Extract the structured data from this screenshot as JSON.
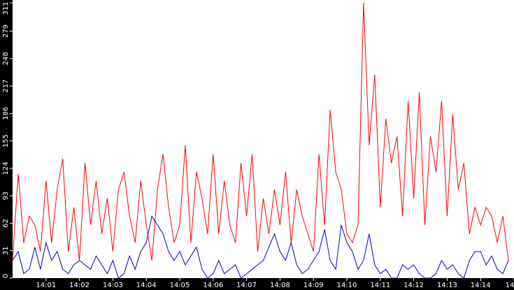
{
  "chart_data": {
    "type": "line",
    "x": [
      0,
      10,
      20,
      30,
      40,
      50,
      60,
      70,
      80,
      90,
      100,
      110,
      120,
      130,
      140,
      150,
      160,
      170,
      180,
      190,
      200,
      210,
      220,
      230,
      240,
      250,
      260,
      270,
      280,
      290,
      300,
      310,
      320,
      330,
      340,
      350,
      360,
      370,
      380,
      390,
      400,
      410,
      420,
      430,
      440,
      450,
      460,
      470,
      480,
      490,
      500,
      510,
      520,
      530,
      540,
      550,
      560,
      570,
      580,
      590,
      600,
      610,
      620,
      630,
      640,
      650,
      660,
      670,
      680,
      690,
      700,
      710,
      720,
      730,
      740,
      750,
      760,
      770,
      780,
      790,
      800,
      810,
      820,
      830,
      840,
      850,
      860,
      870,
      880,
      890
    ],
    "xlim": [
      0,
      900
    ],
    "xticks": [
      {
        "value": 60,
        "label": "14:01"
      },
      {
        "value": 120,
        "label": "14:02"
      },
      {
        "value": 180,
        "label": "14:03"
      },
      {
        "value": 240,
        "label": "14:04"
      },
      {
        "value": 300,
        "label": "14:05"
      },
      {
        "value": 360,
        "label": "14:06"
      },
      {
        "value": 420,
        "label": "14:07"
      },
      {
        "value": 480,
        "label": "14:08"
      },
      {
        "value": 540,
        "label": "14:09"
      },
      {
        "value": 600,
        "label": "14:10"
      },
      {
        "value": 660,
        "label": "14:11"
      },
      {
        "value": 720,
        "label": "14:12"
      },
      {
        "value": 780,
        "label": "14:13"
      },
      {
        "value": 840,
        "label": "14:14"
      },
      {
        "value": 900,
        "label": "14"
      }
    ],
    "ylim": [
      0,
      311
    ],
    "yticks": [
      0,
      31,
      62,
      93,
      124,
      155,
      186,
      217,
      248,
      279,
      311
    ],
    "series": [
      {
        "color": "#ff0000",
        "values": [
          20,
          118,
          40,
          70,
          60,
          30,
          110,
          40,
          100,
          135,
          30,
          80,
          20,
          130,
          60,
          110,
          50,
          90,
          30,
          100,
          120,
          70,
          40,
          110,
          60,
          20,
          100,
          140,
          80,
          40,
          60,
          150,
          40,
          120,
          90,
          50,
          140,
          50,
          110,
          60,
          40,
          130,
          70,
          140,
          30,
          90,
          50,
          100,
          60,
          120,
          40,
          100,
          70,
          50,
          30,
          140,
          60,
          190,
          120,
          100,
          50,
          40,
          60,
          311,
          150,
          230,
          80,
          180,
          130,
          160,
          70,
          200,
          90,
          210,
          60,
          160,
          120,
          200,
          70,
          185,
          100,
          130,
          50,
          80,
          60,
          80,
          70,
          40,
          70,
          20
        ]
      },
      {
        "color": "#0000cc",
        "values": [
          20,
          30,
          5,
          10,
          35,
          10,
          40,
          20,
          30,
          10,
          5,
          15,
          20,
          15,
          10,
          25,
          15,
          5,
          20,
          0,
          5,
          25,
          10,
          30,
          40,
          70,
          60,
          50,
          30,
          20,
          30,
          15,
          25,
          35,
          10,
          0,
          5,
          20,
          5,
          10,
          15,
          0,
          5,
          10,
          15,
          20,
          35,
          50,
          30,
          20,
          40,
          15,
          5,
          10,
          20,
          30,
          55,
          20,
          10,
          60,
          40,
          30,
          10,
          20,
          50,
          15,
          5,
          10,
          0,
          0,
          15,
          10,
          15,
          5,
          0,
          0,
          5,
          20,
          10,
          15,
          5,
          0,
          20,
          30,
          30,
          15,
          25,
          10,
          5,
          20
        ]
      }
    ]
  }
}
